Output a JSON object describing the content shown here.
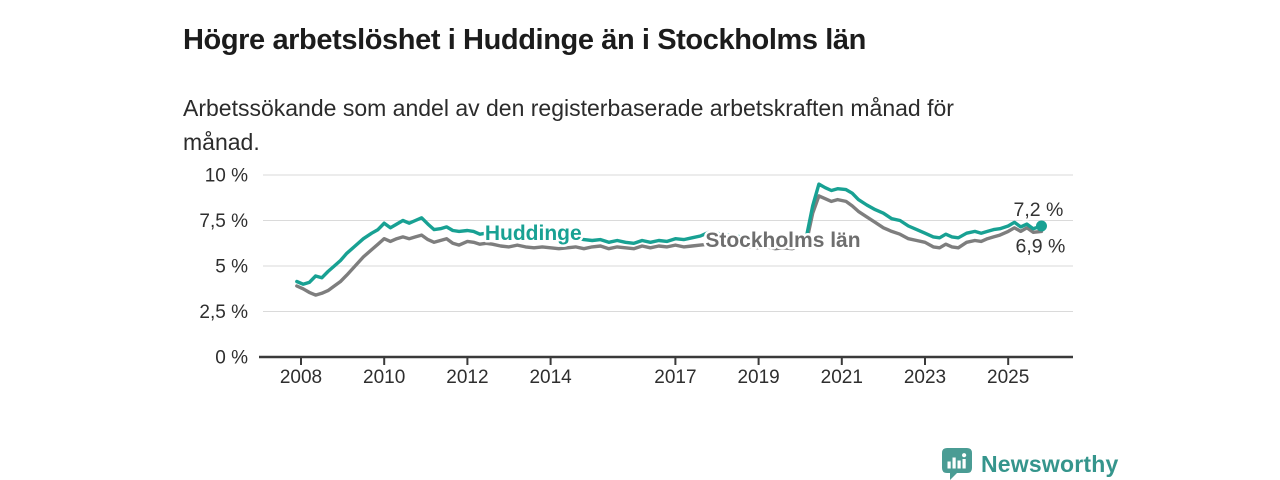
{
  "header": {
    "title": "Högre arbetslöshet i Huddinge än i Stockholms län",
    "subtitle": "Arbetssökande som andel av den registerbaserade arbetskraften månad för månad."
  },
  "footer": {
    "brand": "Newsworthy"
  },
  "colors": {
    "huddinge": "#18A193",
    "stockholm_line": "#7E7E7E",
    "stockholm_label": "#6E6E6E",
    "axis": "#3A3A3A",
    "tick_text": "#2E2E2E",
    "grid": "#DADADA",
    "end_label": "#333333",
    "title_color": "#1C1C1C",
    "subtitle_color": "#2B2B2B",
    "brand_color": "#35958C",
    "brand_icon": "#4A9C94"
  },
  "chart_data": {
    "type": "line",
    "title": "Högre arbetslöshet i Huddinge än i Stockholms län",
    "subtitle": "Arbetssökande som andel av den registerbaserade arbetskraften månad för månad.",
    "unit": "%",
    "decimal_style": "comma",
    "grid": "horizontal-only",
    "legend": "inline-labels",
    "ylim": [
      0,
      10
    ],
    "xlim": [
      2007.1,
      2026.6
    ],
    "y_ticks": {
      "values": [
        0,
        2.5,
        5,
        7.5,
        10
      ],
      "labels": [
        "0 %",
        "2,5 %",
        "5 %",
        "7,5 %",
        "10 %"
      ]
    },
    "x_ticks": [
      2008,
      2010,
      2012,
      2014,
      2017,
      2019,
      2021,
      2023,
      2025
    ],
    "x": [
      2007.9,
      2008.05,
      2008.2,
      2008.35,
      2008.5,
      2008.65,
      2008.8,
      2008.95,
      2009.1,
      2009.3,
      2009.5,
      2009.7,
      2009.85,
      2010.0,
      2010.15,
      2010.3,
      2010.45,
      2010.6,
      2010.75,
      2010.9,
      2011.05,
      2011.2,
      2011.35,
      2011.5,
      2011.65,
      2011.8,
      2012.0,
      2012.15,
      2012.3,
      2012.45,
      2012.6,
      2012.8,
      2013.0,
      2013.2,
      2013.4,
      2013.6,
      2013.8,
      2014.0,
      2014.2,
      2014.4,
      2014.6,
      2014.8,
      2015.0,
      2015.2,
      2015.4,
      2015.6,
      2015.8,
      2016.0,
      2016.2,
      2016.4,
      2016.6,
      2016.8,
      2017.0,
      2017.2,
      2017.4,
      2017.6,
      2017.8,
      2018.0,
      2018.2,
      2018.4,
      2018.6,
      2018.8,
      2019.0,
      2019.2,
      2019.4,
      2019.6,
      2019.8,
      2020.0,
      2020.15,
      2020.3,
      2020.45,
      2020.6,
      2020.75,
      2020.9,
      2021.1,
      2021.25,
      2021.4,
      2021.6,
      2021.8,
      2022.0,
      2022.2,
      2022.4,
      2022.6,
      2022.8,
      2023.0,
      2023.2,
      2023.35,
      2023.5,
      2023.65,
      2023.8,
      2024.0,
      2024.2,
      2024.35,
      2024.5,
      2024.65,
      2024.8,
      2025.0,
      2025.15,
      2025.3,
      2025.45,
      2025.6,
      2025.8
    ],
    "series": [
      {
        "name": "Huddinge",
        "color": "#18A193",
        "end_label": "7,2 %",
        "latest_value": 7.2,
        "end_marker": true,
        "values": [
          4.15,
          4.0,
          4.1,
          4.45,
          4.35,
          4.7,
          5.0,
          5.3,
          5.7,
          6.1,
          6.5,
          6.8,
          7.0,
          7.35,
          7.1,
          7.3,
          7.5,
          7.35,
          7.5,
          7.65,
          7.3,
          7.0,
          7.05,
          7.15,
          6.95,
          6.9,
          6.95,
          6.9,
          6.75,
          6.8,
          6.8,
          6.75,
          6.75,
          6.8,
          6.7,
          6.65,
          6.6,
          6.6,
          6.55,
          6.5,
          6.55,
          6.45,
          6.4,
          6.45,
          6.3,
          6.4,
          6.3,
          6.25,
          6.4,
          6.3,
          6.4,
          6.35,
          6.5,
          6.45,
          6.55,
          6.65,
          6.85,
          6.8,
          6.7,
          6.65,
          6.6,
          6.5,
          6.45,
          6.4,
          6.3,
          6.35,
          6.25,
          6.4,
          6.6,
          8.3,
          9.5,
          9.3,
          9.15,
          9.25,
          9.2,
          9.0,
          8.65,
          8.35,
          8.1,
          7.9,
          7.6,
          7.5,
          7.2,
          7.0,
          6.8,
          6.6,
          6.55,
          6.75,
          6.6,
          6.55,
          6.8,
          6.9,
          6.8,
          6.9,
          7.0,
          7.05,
          7.2,
          7.4,
          7.15,
          7.3,
          7.05,
          7.2
        ]
      },
      {
        "name": "Stockholms län",
        "color": "#7E7E7E",
        "end_label": "6,9 %",
        "latest_value": 6.9,
        "end_marker": false,
        "values": [
          3.9,
          3.75,
          3.55,
          3.4,
          3.5,
          3.65,
          3.9,
          4.15,
          4.5,
          5.0,
          5.5,
          5.9,
          6.2,
          6.5,
          6.35,
          6.5,
          6.6,
          6.5,
          6.6,
          6.7,
          6.45,
          6.3,
          6.4,
          6.5,
          6.25,
          6.15,
          6.35,
          6.3,
          6.2,
          6.25,
          6.2,
          6.1,
          6.05,
          6.15,
          6.05,
          6.0,
          6.05,
          6.0,
          5.95,
          6.0,
          6.05,
          5.95,
          6.05,
          6.1,
          5.95,
          6.05,
          6.0,
          5.95,
          6.1,
          6.0,
          6.1,
          6.05,
          6.15,
          6.05,
          6.1,
          6.15,
          6.2,
          6.2,
          6.15,
          6.2,
          6.1,
          6.05,
          6.0,
          6.05,
          5.95,
          6.0,
          5.95,
          6.1,
          6.3,
          7.9,
          8.85,
          8.7,
          8.55,
          8.65,
          8.55,
          8.3,
          8.0,
          7.7,
          7.4,
          7.1,
          6.9,
          6.75,
          6.5,
          6.4,
          6.3,
          6.05,
          6.0,
          6.2,
          6.05,
          6.0,
          6.3,
          6.4,
          6.35,
          6.5,
          6.6,
          6.7,
          6.9,
          7.1,
          6.9,
          7.1,
          6.85,
          6.9
        ]
      }
    ]
  }
}
